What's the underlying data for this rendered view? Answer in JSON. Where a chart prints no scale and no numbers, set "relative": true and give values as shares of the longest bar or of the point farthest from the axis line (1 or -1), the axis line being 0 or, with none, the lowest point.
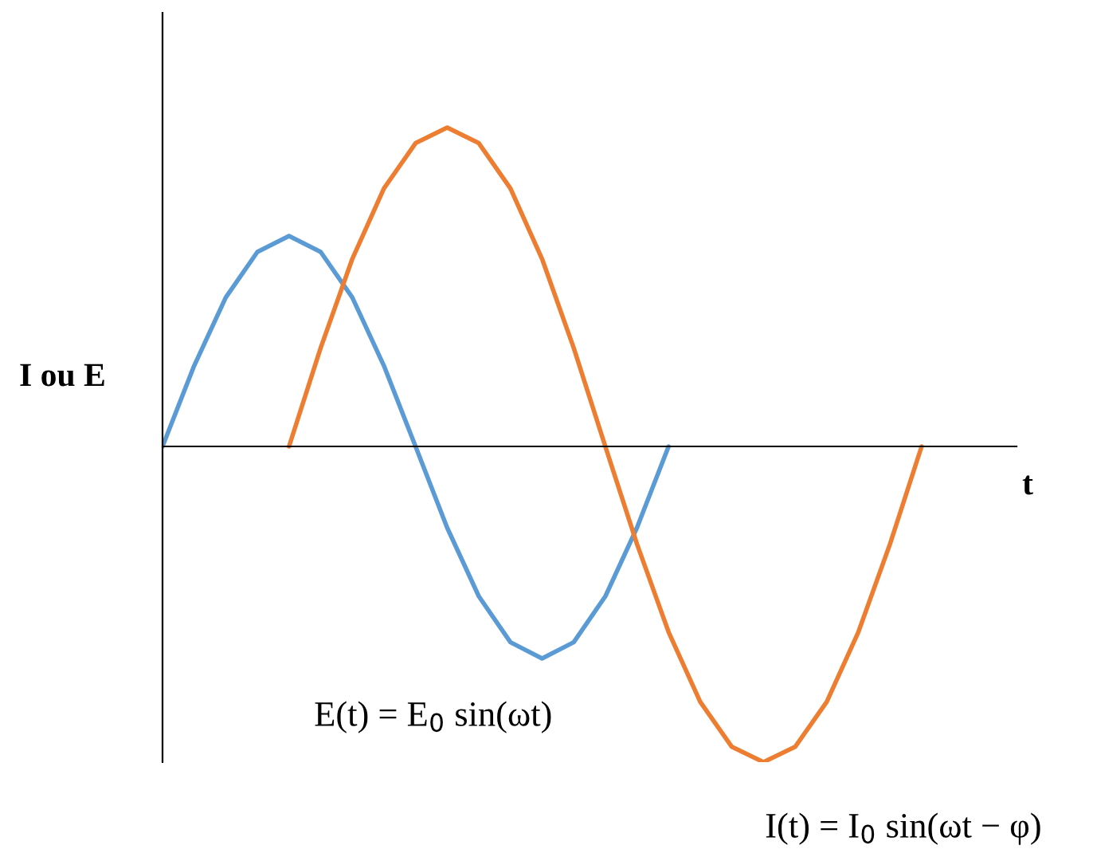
{
  "chart_data": {
    "type": "line",
    "relative": true,
    "ylabel": "I ou E",
    "xlabel": "t",
    "categories": [
      null,
      null,
      null,
      null,
      null,
      null,
      null,
      null,
      null,
      null,
      null,
      null,
      null,
      null,
      null,
      null,
      null,
      null,
      null,
      null,
      null,
      null,
      null,
      null,
      null,
      null,
      null,
      null
    ],
    "series": [
      {
        "color": "#5b9bd5",
        "values": [
          0,
          0.253,
          0.467,
          0.61,
          0.66,
          0.61,
          0.467,
          0.253,
          0,
          -0.255,
          -0.47,
          -0.614,
          -0.665,
          -0.614,
          -0.47,
          -0.255,
          0,
          null,
          null,
          null,
          null,
          null,
          null,
          null,
          null,
          null,
          null,
          null
        ]
      },
      {
        "color": "#ed7d31",
        "values": [
          null,
          null,
          null,
          null,
          0,
          0.309,
          0.588,
          0.809,
          0.951,
          1,
          0.951,
          0.809,
          0.588,
          0.309,
          0,
          -0.306,
          -0.582,
          -0.801,
          -0.942,
          -0.99,
          -0.942,
          -0.801,
          -0.582,
          -0.306,
          0,
          null,
          null,
          null
        ]
      }
    ],
    "grid": false,
    "legend": false,
    "annotations": [
      "E(t) = E$_{0}$ sin(ωt)",
      "I(t) = I$_{0}$ sin(ωt − φ)"
    ]
  }
}
